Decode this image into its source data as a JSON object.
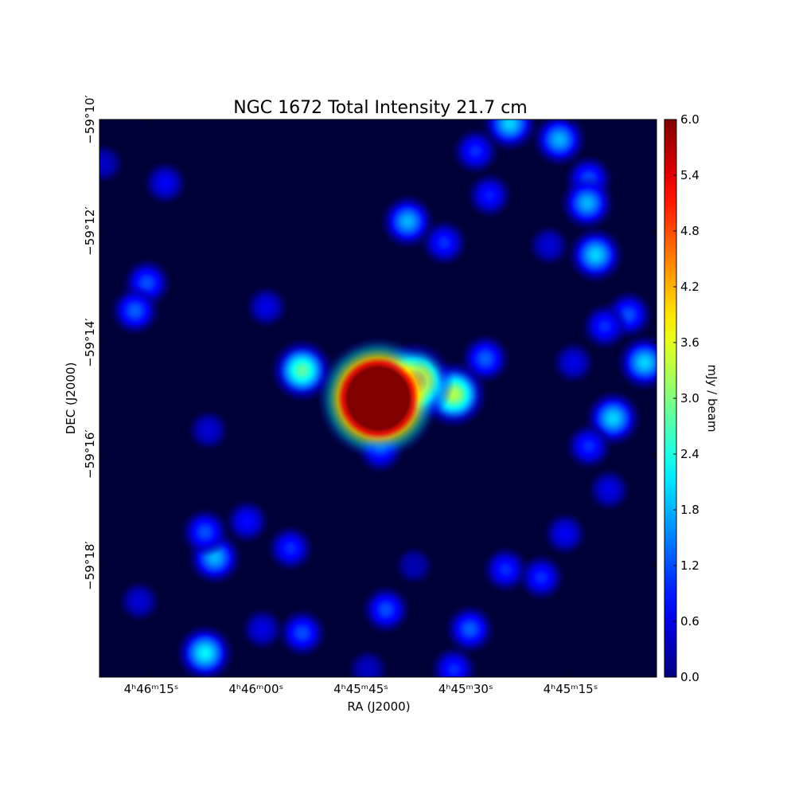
{
  "chart_data": {
    "type": "heatmap",
    "title": "NGC 1672 Total Intensity 21.7 cm",
    "x_label": "RA (J2000)",
    "y_label": "DEC (J2000)",
    "colorbar_label": "mJy / beam",
    "colormap": "jet",
    "xlim": [
      82.4,
      2.7
    ],
    "xticks": [
      {
        "value": 75,
        "label": "4ʰ46ᵐ15ˢ"
      },
      {
        "value": 60,
        "label": "4ʰ46ᵐ00ˢ"
      },
      {
        "value": 45,
        "label": "4ʰ45ᵐ45ˢ"
      },
      {
        "value": 30,
        "label": "4ʰ45ᵐ30ˢ"
      },
      {
        "value": 15,
        "label": "4ʰ45ᵐ15ˢ"
      }
    ],
    "ylim": [
      20,
      10
    ],
    "yticks": [
      {
        "value": 10,
        "label": "−59°10′"
      },
      {
        "value": 12,
        "label": "−59°12′"
      },
      {
        "value": 14,
        "label": "−59°14′"
      },
      {
        "value": 16,
        "label": "−59°16′"
      },
      {
        "value": 18,
        "label": "−59°18′"
      }
    ],
    "clim": [
      0,
      6
    ],
    "cticks": [
      {
        "value": 0,
        "label": "0.0"
      },
      0.6,
      1.2,
      1.8,
      2.4,
      {
        "value": 3,
        "label": "3.0"
      },
      3.6,
      4.2,
      4.8,
      5.4,
      {
        "value": 6,
        "label": "6.0"
      }
    ],
    "x": [
      23.7,
      16.6,
      28.6,
      12.4,
      12.6,
      26.6,
      38.3,
      33.1,
      11.4,
      18.1,
      73.0,
      81.8,
      75.6,
      77.3,
      58.5,
      27.2,
      42.2,
      6.7,
      10.1,
      4.4,
      14.6,
      8.9,
      12.4,
      9.5,
      66.8,
      65.9,
      67.3,
      61.3,
      55.1,
      15.8,
      24.3,
      19.2,
      76.7,
      41.4,
      29.4,
      53.4,
      59.1,
      67.3,
      31.7,
      44.0,
      37.4,
      53.4,
      31.7,
      37.4,
      42.5
    ],
    "y": [
      10.07,
      10.36,
      10.57,
      11.07,
      11.5,
      11.36,
      11.83,
      12.21,
      12.43,
      12.26,
      11.14,
      10.79,
      12.93,
      13.43,
      13.36,
      14.29,
      15.93,
      13.5,
      13.71,
      14.36,
      14.36,
      15.36,
      15.86,
      16.64,
      15.57,
      17.86,
      17.4,
      17.21,
      17.69,
      17.43,
      18.07,
      18.21,
      18.64,
      18.79,
      19.14,
      19.21,
      19.14,
      19.57,
      19.86,
      19.86,
      18.0,
      14.5,
      14.93,
      14.71,
      15.0
    ],
    "values": [
      2.0,
      1.8,
      1.0,
      1.2,
      1.8,
      0.9,
      1.8,
      1.0,
      2.0,
      0.5,
      0.7,
      0.4,
      1.2,
      1.3,
      0.6,
      1.3,
      1.0,
      1.2,
      1.0,
      2.0,
      0.6,
      2.0,
      1.0,
      0.6,
      0.5,
      1.8,
      1.2,
      0.8,
      1.0,
      0.7,
      1.0,
      1.0,
      0.5,
      1.2,
      1.3,
      1.2,
      0.6,
      2.2,
      1.0,
      0.4,
      0.3,
      2.8,
      3.3,
      5.0,
      12.0
    ]
  }
}
